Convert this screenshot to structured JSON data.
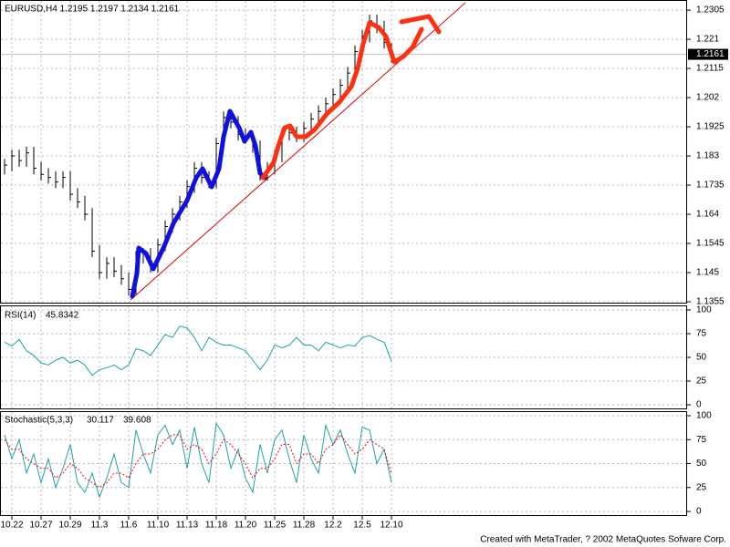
{
  "chart_data": [
    {
      "type": "ohlc",
      "title": "EURUSD,H4  1.2195 1.2197 1.2134 1.2161",
      "color": "#000000",
      "grid": true,
      "x": [
        0,
        2,
        4,
        6,
        8,
        10,
        12,
        14,
        16,
        18,
        20,
        22,
        24,
        26,
        28,
        30,
        32,
        34,
        36,
        38,
        40,
        42,
        44,
        46,
        48,
        50,
        52,
        54,
        56,
        58,
        60,
        62,
        64,
        66,
        68,
        70,
        72,
        74,
        76,
        78,
        80,
        82,
        84,
        86,
        88,
        90,
        92,
        94,
        96,
        98,
        100,
        102,
        104,
        106
      ],
      "high": [
        1.182,
        1.185,
        1.185,
        1.186,
        1.186,
        1.181,
        1.179,
        1.178,
        1.178,
        1.178,
        1.1725,
        1.17,
        1.166,
        1.154,
        1.15,
        1.15,
        1.1475,
        1.145,
        1.152,
        1.153,
        1.153,
        1.156,
        1.162,
        1.166,
        1.17,
        1.175,
        1.181,
        1.181,
        1.178,
        1.189,
        1.1975,
        1.1975,
        1.196,
        1.192,
        1.191,
        1.188,
        1.181,
        1.185,
        1.192,
        1.1925,
        1.1925,
        1.194,
        1.197,
        1.1995,
        1.202,
        1.205,
        1.208,
        1.212,
        1.219,
        1.224,
        1.229,
        1.229,
        1.227,
        1.2197
      ],
      "low": [
        1.177,
        1.178,
        1.1795,
        1.1795,
        1.177,
        1.175,
        1.174,
        1.1725,
        1.1725,
        1.1685,
        1.166,
        1.162,
        1.15,
        1.143,
        1.143,
        1.1435,
        1.141,
        1.1375,
        1.1375,
        1.148,
        1.145,
        1.145,
        1.152,
        1.158,
        1.162,
        1.166,
        1.171,
        1.174,
        1.1725,
        1.1725,
        1.185,
        1.192,
        1.188,
        1.187,
        1.184,
        1.175,
        1.175,
        1.177,
        1.181,
        1.188,
        1.1875,
        1.1875,
        1.19,
        1.193,
        1.1955,
        1.198,
        1.201,
        1.204,
        1.208,
        1.215,
        1.22,
        1.223,
        1.218,
        1.2134
      ],
      "close": [
        1.18,
        1.183,
        1.1815,
        1.184,
        1.179,
        1.177,
        1.176,
        1.1745,
        1.176,
        1.1705,
        1.168,
        1.164,
        1.152,
        1.145,
        1.148,
        1.1455,
        1.143,
        1.1395,
        1.15,
        1.151,
        1.147,
        1.154,
        1.16,
        1.164,
        1.168,
        1.173,
        1.179,
        1.176,
        1.1745,
        1.187,
        1.1955,
        1.194,
        1.19,
        1.189,
        1.186,
        1.177,
        1.179,
        1.183,
        1.19,
        1.1905,
        1.1895,
        1.192,
        1.195,
        1.1975,
        1.2,
        1.203,
        1.206,
        1.21,
        1.217,
        1.222,
        1.227,
        1.225,
        1.22,
        1.2161
      ],
      "xlim": [
        -1.25,
        186.75
      ],
      "xticks": [
        {
          "value": 2,
          "label": "10.22"
        },
        {
          "value": 10,
          "label": "10.27"
        },
        {
          "value": 18,
          "label": "10.29"
        },
        {
          "value": 26,
          "label": "11.3"
        },
        {
          "value": 34,
          "label": "11.6"
        },
        {
          "value": 42,
          "label": "11.10"
        },
        {
          "value": 50,
          "label": "11.13"
        },
        {
          "value": 58,
          "label": "11.18"
        },
        {
          "value": 66,
          "label": "11.20"
        },
        {
          "value": 74,
          "label": "11.25"
        },
        {
          "value": 82,
          "label": "11.28"
        },
        {
          "value": 90,
          "label": "12.2"
        },
        {
          "value": 98,
          "label": "12.5"
        },
        {
          "value": 106,
          "label": "12.10"
        }
      ],
      "ylim": [
        1.1352,
        1.2335
      ],
      "yticks": [
        1.2305,
        1.221,
        1.2115,
        1.202,
        1.1925,
        1.183,
        1.1735,
        1.164,
        1.1545,
        1.145,
        1.1355
      ]
    },
    {
      "type": "line",
      "title": "RSI(14)",
      "grid": true,
      "series": [
        {
          "color": "#1fa3a3",
          "values": [
            66,
            62,
            69,
            57,
            52,
            44,
            42,
            47,
            50,
            44,
            47,
            42,
            31,
            37,
            39,
            42,
            37,
            42,
            59,
            57,
            52,
            63,
            74,
            71,
            83,
            81,
            71,
            57,
            71,
            66,
            63,
            63,
            60,
            57,
            47,
            37,
            47,
            63,
            60,
            63,
            71,
            63,
            63,
            57,
            66,
            63,
            60,
            63,
            62,
            71,
            73,
            69,
            66,
            45.8342
          ]
        }
      ],
      "ylim": [
        -3.8,
        103.8
      ],
      "yticks": [
        100,
        75,
        50,
        25,
        0
      ]
    },
    {
      "type": "line",
      "title": "Stochastic(5,3,3)",
      "grid": true,
      "series": [
        {
          "color": "#1fa3a3",
          "values": [
            80,
            55,
            75,
            40,
            60,
            30,
            55,
            25,
            45,
            70,
            30,
            20,
            40,
            15,
            35,
            60,
            30,
            25,
            85,
            60,
            40,
            80,
            90,
            70,
            85,
            45,
            88,
            50,
            30,
            92,
            80,
            45,
            65,
            35,
            20,
            70,
            40,
            75,
            85,
            55,
            30,
            80,
            55,
            40,
            90,
            70,
            85,
            60,
            40,
            88,
            85,
            50,
            65,
            30.117
          ]
        },
        {
          "color": "#ff0000",
          "dash": true,
          "values": [
            75,
            65,
            65,
            55,
            50,
            45,
            45,
            35,
            40,
            50,
            45,
            35,
            30,
            25,
            30,
            40,
            40,
            35,
            50,
            60,
            60,
            65,
            75,
            80,
            80,
            65,
            70,
            65,
            50,
            60,
            75,
            70,
            60,
            50,
            35,
            45,
            45,
            55,
            70,
            70,
            50,
            60,
            60,
            50,
            65,
            70,
            80,
            70,
            60,
            65,
            75,
            70,
            65,
            39.608
          ]
        }
      ],
      "ylim": [
        -3.8,
        103.8
      ],
      "yticks": [
        100,
        75,
        50,
        25,
        0
      ]
    }
  ],
  "footer": "Created with MetaTrader, ? 2002 MetaQuotes Sofware Corp."
}
